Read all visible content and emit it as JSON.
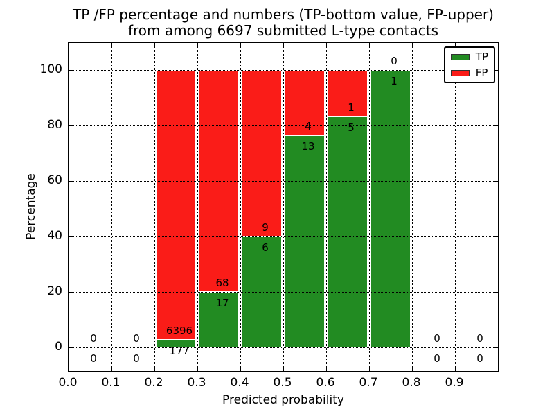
{
  "chart_data": {
    "type": "bar",
    "stacked": true,
    "title_line1": "TP /FP percentage and numbers (TP-bottom value, FP-upper)",
    "title_line2": "from among 6697 submitted L-type contacts",
    "xlabel": "Predicted probability",
    "ylabel": "Percentage",
    "total_contacts": 6697,
    "xlim": [
      0.0,
      1.0
    ],
    "ylim": [
      -9,
      110
    ],
    "grid": true,
    "legend_position": "upper right",
    "legend": [
      {
        "label": "TP",
        "color": "#228b22"
      },
      {
        "label": "FP",
        "color": "#fa1c18"
      }
    ],
    "yticks": [
      {
        "v": 0,
        "label": "0"
      },
      {
        "v": 20,
        "label": "20"
      },
      {
        "v": 40,
        "label": "40"
      },
      {
        "v": 60,
        "label": "60"
      },
      {
        "v": 80,
        "label": "80"
      },
      {
        "v": 100,
        "label": "100"
      }
    ],
    "xticks": [
      {
        "v": 0.0,
        "label": "0.0"
      },
      {
        "v": 0.1,
        "label": "0.1"
      },
      {
        "v": 0.2,
        "label": "0.2"
      },
      {
        "v": 0.3,
        "label": "0.3"
      },
      {
        "v": 0.4,
        "label": "0.4"
      },
      {
        "v": 0.5,
        "label": "0.5"
      },
      {
        "v": 0.6,
        "label": "0.6"
      },
      {
        "v": 0.7,
        "label": "0.7"
      },
      {
        "v": 0.8,
        "label": "0.8"
      },
      {
        "v": 0.9,
        "label": "0.9"
      }
    ],
    "bins": [
      {
        "x0": 0.0,
        "x1": 0.1,
        "tp": 0,
        "fp": 0
      },
      {
        "x0": 0.1,
        "x1": 0.2,
        "tp": 0,
        "fp": 0
      },
      {
        "x0": 0.2,
        "x1": 0.3,
        "tp": 177,
        "fp": 6396
      },
      {
        "x0": 0.3,
        "x1": 0.4,
        "tp": 17,
        "fp": 68
      },
      {
        "x0": 0.4,
        "x1": 0.5,
        "tp": 6,
        "fp": 9
      },
      {
        "x0": 0.5,
        "x1": 0.6,
        "tp": 13,
        "fp": 4
      },
      {
        "x0": 0.6,
        "x1": 0.7,
        "tp": 5,
        "fp": 1
      },
      {
        "x0": 0.7,
        "x1": 0.8,
        "tp": 1,
        "fp": 0
      },
      {
        "x0": 0.8,
        "x1": 0.9,
        "tp": 0,
        "fp": 0
      },
      {
        "x0": 0.9,
        "x1": 1.0,
        "tp": 0,
        "fp": 0
      }
    ],
    "colors": {
      "background": "#ffffff",
      "axis": "#000000",
      "grid": "#000000"
    }
  }
}
